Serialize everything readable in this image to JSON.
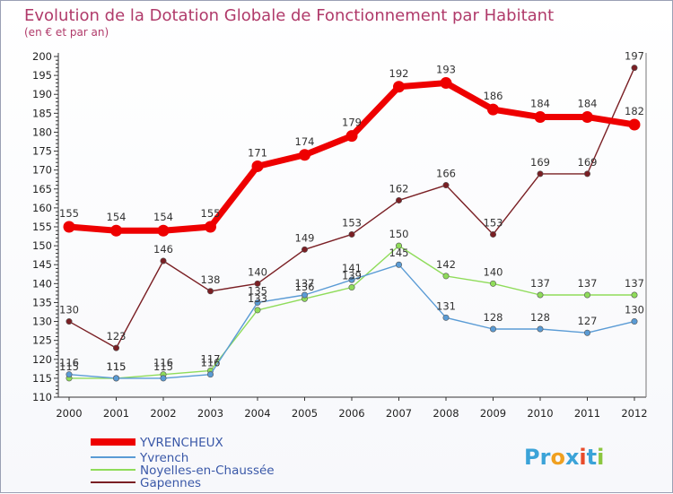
{
  "chart_data": {
    "type": "line",
    "title": "Evolution de la Dotation Globale de Fonctionnement par Habitant",
    "subtitle": "(en € et par an)",
    "xlabel": "",
    "ylabel": "",
    "x": [
      "2000",
      "2001",
      "2002",
      "2003",
      "2004",
      "2005",
      "2006",
      "2007",
      "2008",
      "2009",
      "2010",
      "2011",
      "2012"
    ],
    "ylim": [
      110,
      200
    ],
    "yticks": [
      "110",
      "115",
      "120",
      "125",
      "130",
      "135",
      "140",
      "145",
      "150",
      "155",
      "160",
      "165",
      "170",
      "175",
      "180",
      "185",
      "190",
      "195",
      "200"
    ],
    "grid": false,
    "legend_position": "bottom-left",
    "series": [
      {
        "name": "YVRENCHEUX",
        "color": "#ee0000",
        "values": [
          155,
          154,
          154,
          155,
          171,
          174,
          179,
          192,
          193,
          186,
          184,
          184,
          182
        ],
        "labels": [
          "155",
          "154",
          "154",
          "155",
          "171",
          "174",
          "179",
          "192",
          "193",
          "186",
          "184",
          "184",
          "182"
        ]
      },
      {
        "name": "Yvrench",
        "color": "#5a9bd5",
        "values": [
          116,
          115,
          115,
          116,
          135,
          137,
          141,
          145,
          131,
          128,
          128,
          127,
          130
        ],
        "labels": [
          "116",
          "115",
          "115",
          "116",
          "135",
          "137",
          "141",
          "145",
          "131",
          "128",
          "128",
          "127",
          "130"
        ]
      },
      {
        "name": "Noyelles-en-Chaussée",
        "color": "#8fdc5a",
        "values": [
          115,
          115,
          116,
          117,
          133,
          136,
          139,
          150,
          142,
          140,
          137,
          137,
          137
        ],
        "labels": [
          "115",
          "115",
          "116",
          "117",
          "133",
          "136",
          "139",
          "150",
          "142",
          "140",
          "137",
          "137",
          "137"
        ]
      },
      {
        "name": "Gapennes",
        "color": "#7a1f24",
        "values": [
          130,
          123,
          146,
          138,
          140,
          149,
          153,
          162,
          166,
          153,
          169,
          169,
          197
        ],
        "labels": [
          "130",
          "123",
          "146",
          "138",
          "140",
          "149",
          "153",
          "162",
          "166",
          "153",
          "169",
          "169",
          "197"
        ]
      }
    ]
  },
  "logo": {
    "text": "Proxiti",
    "letters": [
      "P",
      "r",
      "o",
      "x",
      "i",
      "t",
      "i"
    ],
    "colors": [
      "#3ba3d8",
      "#3ba3d8",
      "#f0a020",
      "#3ba3d8",
      "#e84b2a",
      "#3ba3d8",
      "#8cc63f"
    ]
  }
}
